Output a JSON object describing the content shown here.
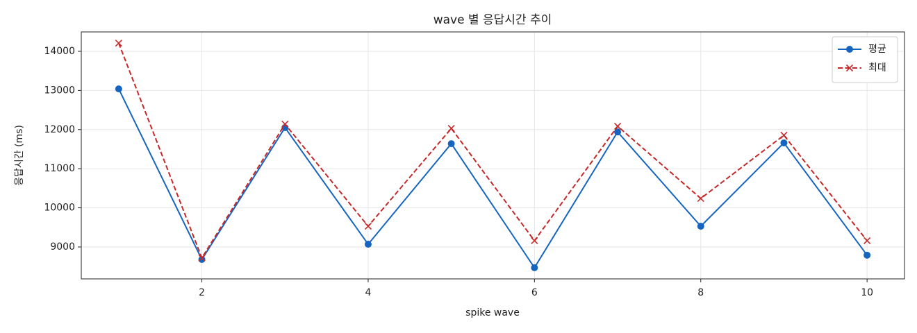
{
  "chart_data": {
    "type": "line",
    "title": "wave 별 응답시간 추이",
    "x_label": "spike wave",
    "y_label": "응답시간 (ms)",
    "x": [
      1,
      2,
      3,
      4,
      5,
      6,
      7,
      8,
      9,
      10
    ],
    "series": [
      {
        "name": "평균",
        "color": "#1565c0",
        "marker": "o",
        "linestyle": "solid",
        "values": [
          13040,
          8680,
          12050,
          9070,
          11640,
          8470,
          11940,
          9530,
          11660,
          8790
        ]
      },
      {
        "name": "최대",
        "color": "#c62828",
        "marker": "x",
        "linestyle": "dashed",
        "values": [
          14210,
          8720,
          12140,
          9530,
          12030,
          9160,
          12085,
          10240,
          11855,
          9160
        ]
      }
    ],
    "xlim": [
      0.55,
      10.45
    ],
    "ylim": [
      8184,
      14496
    ],
    "xticks": [
      2,
      4,
      6,
      8,
      10
    ],
    "yticks": [
      9000,
      10000,
      11000,
      12000,
      13000,
      14000
    ],
    "grid": true,
    "legend": "upper right"
  }
}
